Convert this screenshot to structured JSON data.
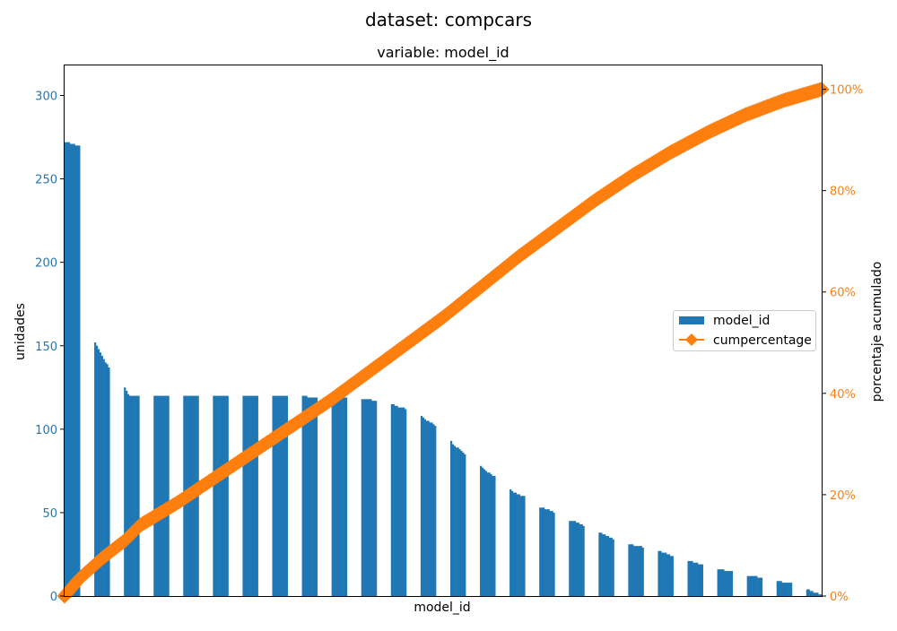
{
  "chart_data": {
    "type": "bar",
    "title": "dataset: compcars",
    "subtitle": "variable: model_id",
    "xlabel": "model_id",
    "ylabel": "unidades",
    "y2label": "porcentaje acumulado",
    "ylim": [
      0,
      318
    ],
    "y2lim": [
      0,
      104.7
    ],
    "yticks": [
      0,
      50,
      100,
      150,
      200,
      250,
      300
    ],
    "y2ticks": [
      0,
      20,
      40,
      60,
      80,
      100
    ],
    "y2tick_labels": [
      "0%",
      "20%",
      "40%",
      "60%",
      "80%",
      "100%"
    ],
    "grid": false,
    "legend_position": "center-right",
    "x_ticks_shown": false,
    "colors": {
      "bars": "#1f77b4",
      "cum": "#ff7f0e"
    },
    "series": [
      {
        "name": "model_id",
        "kind": "bar",
        "description": "sorted counts per model_id category; each group lists bar heights left to right",
        "groups": [
          [
            272,
            271,
            270
          ],
          [
            152,
            150,
            148,
            146,
            144,
            142,
            140,
            139,
            137
          ],
          [
            125,
            123,
            121,
            120,
            120,
            120,
            120,
            120,
            120
          ],
          [
            120,
            120,
            120,
            120,
            120,
            120,
            120,
            120,
            120
          ],
          [
            120,
            120,
            120,
            120,
            120,
            120,
            120,
            120,
            120
          ],
          [
            120,
            120,
            120,
            120,
            120,
            120,
            120,
            120,
            120
          ],
          [
            120,
            120,
            120,
            120,
            120,
            120,
            120,
            120,
            120
          ],
          [
            120,
            120,
            120,
            120,
            120,
            120,
            120,
            120,
            120
          ],
          [
            120,
            120,
            120,
            119,
            119,
            119,
            119,
            119,
            119
          ],
          [
            119,
            119,
            119,
            119,
            119,
            119,
            119,
            119,
            119
          ],
          [
            118,
            118,
            118,
            118,
            118,
            118,
            117,
            117,
            117
          ],
          [
            115,
            115,
            114,
            114,
            113,
            113,
            113,
            113,
            112
          ],
          [
            108,
            107,
            106,
            105,
            105,
            104,
            104,
            103,
            102
          ],
          [
            93,
            91,
            90,
            89,
            89,
            88,
            87,
            86,
            85
          ],
          [
            78,
            77,
            76,
            75,
            74,
            74,
            73,
            72,
            72
          ],
          [
            64,
            63,
            62,
            62,
            61,
            61,
            60,
            60,
            60
          ],
          [
            53,
            53,
            53,
            52,
            52,
            52,
            51,
            51,
            50
          ],
          [
            45,
            45,
            45,
            45,
            44,
            44,
            43,
            43,
            42
          ],
          [
            38,
            38,
            37,
            37,
            36,
            36,
            35,
            35,
            34
          ],
          [
            31,
            31,
            31,
            30,
            30,
            30,
            30,
            30,
            29
          ],
          [
            27,
            27,
            26,
            26,
            26,
            25,
            25,
            24,
            24
          ],
          [
            21,
            21,
            21,
            20,
            20,
            20,
            19,
            19,
            19
          ],
          [
            16,
            16,
            16,
            16,
            15,
            15,
            15,
            15,
            15
          ],
          [
            12,
            12,
            12,
            12,
            12,
            12,
            11,
            11,
            11
          ],
          [
            9,
            9,
            9,
            8,
            8,
            8,
            8,
            8,
            8
          ],
          [
            4,
            4,
            3,
            3,
            2,
            2,
            2,
            1,
            1
          ]
        ]
      },
      {
        "name": "cumpercentage",
        "kind": "line",
        "marker": "diamond",
        "axis": "right",
        "description": "cumulative percentage at positions across the x-range (0 = left edge, 1 = right edge)",
        "points": [
          [
            0.0,
            0.0
          ],
          [
            0.02,
            3.5
          ],
          [
            0.05,
            7.5
          ],
          [
            0.08,
            11.0
          ],
          [
            0.1,
            14.0
          ],
          [
            0.15,
            18.5
          ],
          [
            0.2,
            23.5
          ],
          [
            0.25,
            28.5
          ],
          [
            0.3,
            33.5
          ],
          [
            0.35,
            38.5
          ],
          [
            0.4,
            44.0
          ],
          [
            0.45,
            49.5
          ],
          [
            0.5,
            55.0
          ],
          [
            0.55,
            61.0
          ],
          [
            0.6,
            67.0
          ],
          [
            0.65,
            72.5
          ],
          [
            0.7,
            78.0
          ],
          [
            0.75,
            83.0
          ],
          [
            0.8,
            87.5
          ],
          [
            0.85,
            91.5
          ],
          [
            0.9,
            95.0
          ],
          [
            0.95,
            97.8
          ],
          [
            1.0,
            100.0
          ]
        ]
      }
    ]
  }
}
